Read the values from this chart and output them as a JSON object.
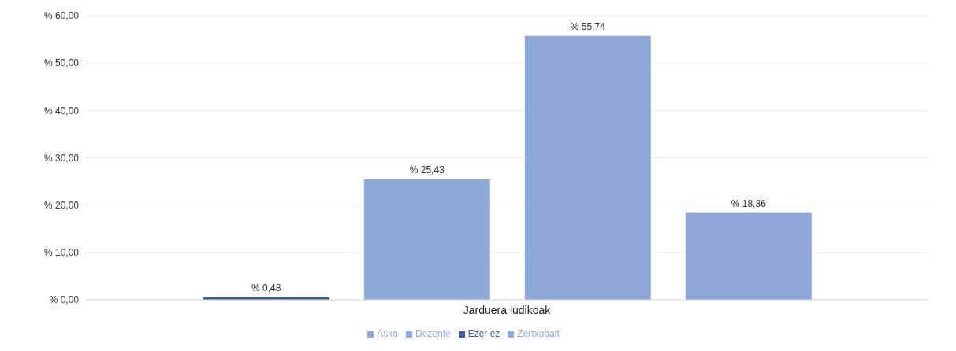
{
  "chart_data": {
    "type": "bar",
    "categories": [
      "Jarduera ludikoak"
    ],
    "series": [
      {
        "name": "Ezer ez",
        "color": "#3c5ca8",
        "values": [
          0.48
        ],
        "value_labels": [
          "% 0,48"
        ]
      },
      {
        "name": "Zertxobait",
        "color": "#8eaad8",
        "values": [
          25.43
        ],
        "value_labels": [
          "% 25,43"
        ]
      },
      {
        "name": "Dezente",
        "color": "#8fa8d8",
        "values": [
          55.74
        ],
        "value_labels": [
          "% 55,74"
        ]
      },
      {
        "name": "Asko",
        "color": "#90a8d9",
        "values": [
          18.36
        ],
        "value_labels": [
          "% 18,36"
        ]
      }
    ],
    "ylim": [
      0,
      60
    ],
    "yticks": [
      {
        "value": 0,
        "label": "% 0,00"
      },
      {
        "value": 10,
        "label": "% 10,00"
      },
      {
        "value": 20,
        "label": "% 20,00"
      },
      {
        "value": 30,
        "label": "% 30,00"
      },
      {
        "value": 40,
        "label": "% 40,00"
      },
      {
        "value": 50,
        "label": "% 50,00"
      },
      {
        "value": 60,
        "label": "% 60,00"
      }
    ],
    "grid": "y",
    "legend": "bottom"
  }
}
